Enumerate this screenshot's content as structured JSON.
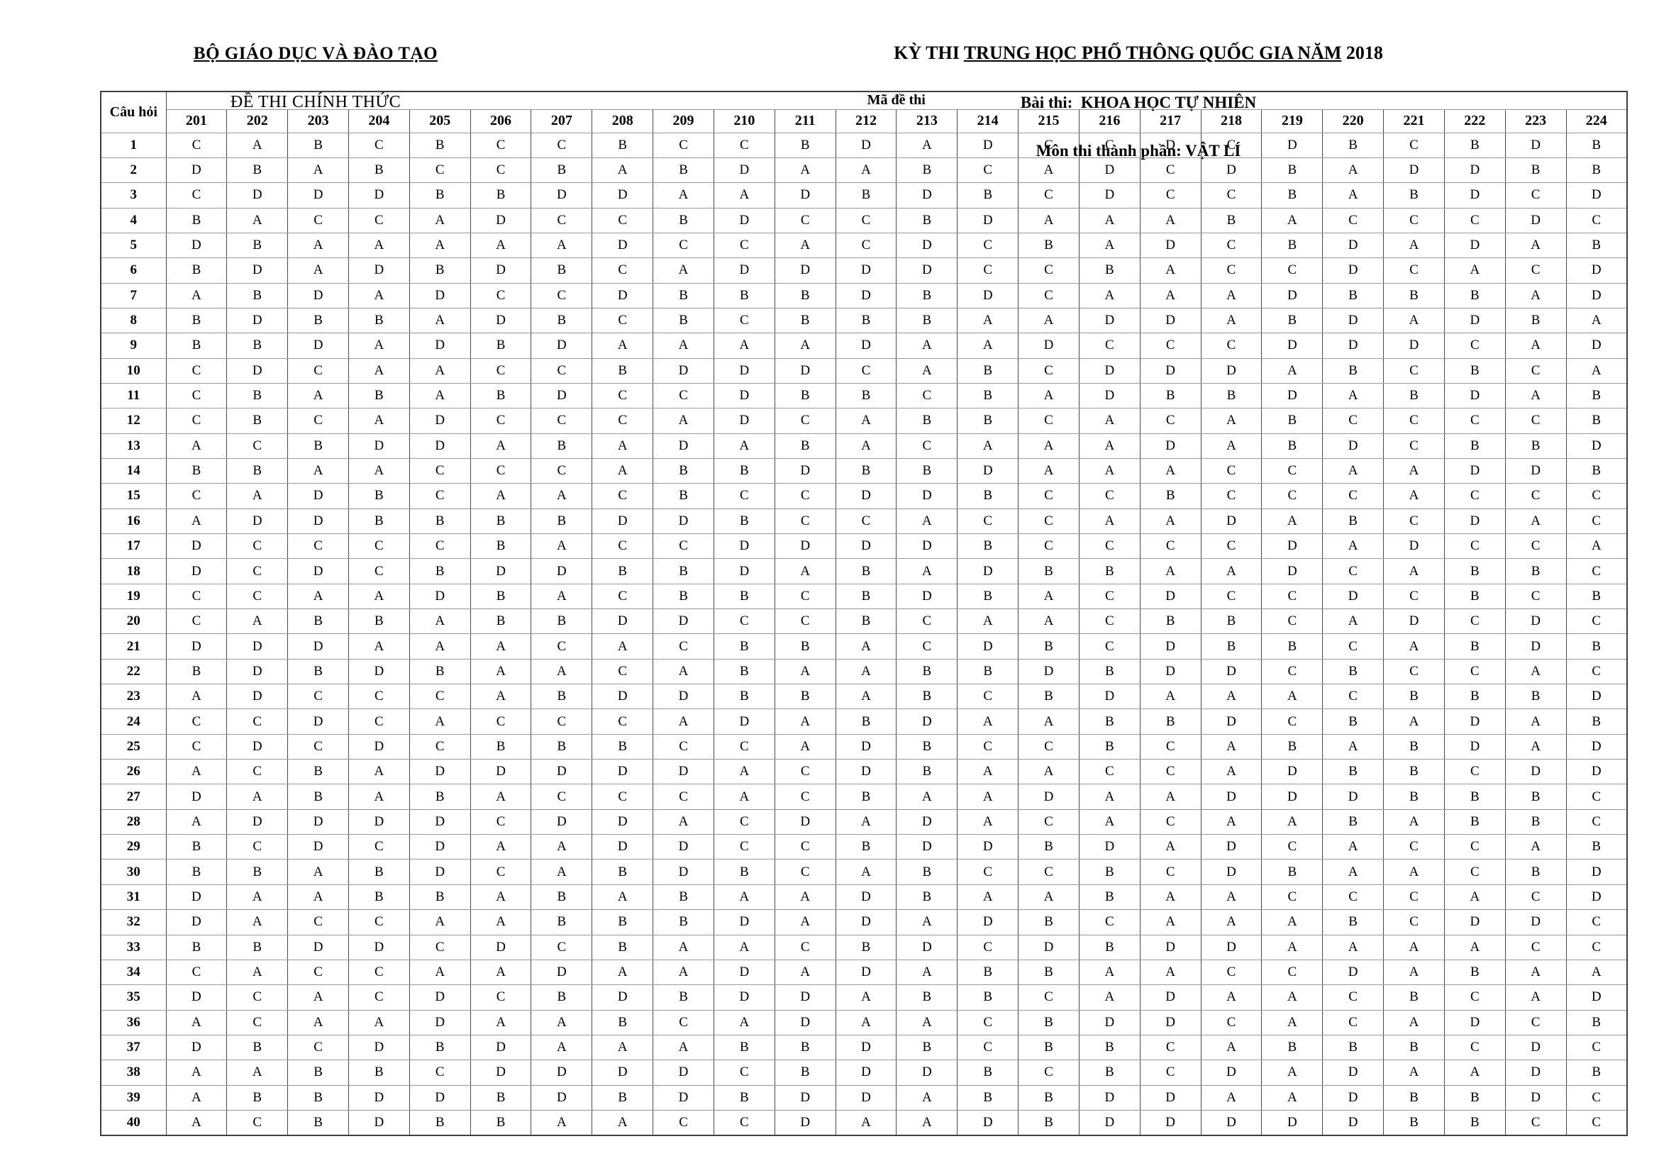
{
  "header_left": {
    "line1": "BỘ GIÁO DỤC VÀ ĐÀO TẠO",
    "line2": "ĐỀ THI CHÍNH THỨC"
  },
  "header_right": {
    "line1_prefix": "KỲ THI ",
    "line1_underline": "TRUNG HỌC PHỔ THÔNG QUỐC GIA NĂM",
    "line1_suffix": " 2018",
    "line2": "Bài thi:  KHOA HỌC TỰ NHIÊN",
    "line3": "Môn thi thành phần: VẬT LÍ"
  },
  "colors": {
    "text": "#000000",
    "background": "#ffffff",
    "grid_vertical": "#4a4a4a",
    "grid_horizontal": "#9a9a9a"
  },
  "table": {
    "corner_label": "Câu hỏi",
    "group_label": "Mã đề thi",
    "codes": [
      "201",
      "202",
      "203",
      "204",
      "205",
      "206",
      "207",
      "208",
      "209",
      "210",
      "211",
      "212",
      "213",
      "214",
      "215",
      "216",
      "217",
      "218",
      "219",
      "220",
      "221",
      "222",
      "223",
      "224"
    ],
    "rows": [
      {
        "q": "1",
        "a": [
          "C",
          "A",
          "B",
          "C",
          "B",
          "C",
          "C",
          "B",
          "C",
          "C",
          "B",
          "D",
          "A",
          "D",
          "C",
          "C",
          "D",
          "C",
          "D",
          "B",
          "C",
          "B",
          "D",
          "B"
        ]
      },
      {
        "q": "2",
        "a": [
          "D",
          "B",
          "A",
          "B",
          "C",
          "C",
          "B",
          "A",
          "B",
          "D",
          "A",
          "A",
          "B",
          "C",
          "A",
          "D",
          "C",
          "D",
          "B",
          "A",
          "D",
          "D",
          "B",
          "B"
        ]
      },
      {
        "q": "3",
        "a": [
          "C",
          "D",
          "D",
          "D",
          "B",
          "B",
          "D",
          "D",
          "A",
          "A",
          "D",
          "B",
          "D",
          "B",
          "C",
          "D",
          "C",
          "C",
          "B",
          "A",
          "B",
          "D",
          "C",
          "D"
        ]
      },
      {
        "q": "4",
        "a": [
          "B",
          "A",
          "C",
          "C",
          "A",
          "D",
          "C",
          "C",
          "B",
          "D",
          "C",
          "C",
          "B",
          "D",
          "A",
          "A",
          "A",
          "B",
          "A",
          "C",
          "C",
          "C",
          "D",
          "C"
        ]
      },
      {
        "q": "5",
        "a": [
          "D",
          "B",
          "A",
          "A",
          "A",
          "A",
          "A",
          "D",
          "C",
          "C",
          "A",
          "C",
          "D",
          "C",
          "B",
          "A",
          "D",
          "C",
          "B",
          "D",
          "A",
          "D",
          "A",
          "B"
        ]
      },
      {
        "q": "6",
        "a": [
          "B",
          "D",
          "A",
          "D",
          "B",
          "D",
          "B",
          "C",
          "A",
          "D",
          "D",
          "D",
          "D",
          "C",
          "C",
          "B",
          "A",
          "C",
          "C",
          "D",
          "C",
          "A",
          "C",
          "D"
        ]
      },
      {
        "q": "7",
        "a": [
          "A",
          "B",
          "D",
          "A",
          "D",
          "C",
          "C",
          "D",
          "B",
          "B",
          "B",
          "D",
          "B",
          "D",
          "C",
          "A",
          "A",
          "A",
          "D",
          "B",
          "B",
          "B",
          "A",
          "D"
        ]
      },
      {
        "q": "8",
        "a": [
          "B",
          "D",
          "B",
          "B",
          "A",
          "D",
          "B",
          "C",
          "B",
          "C",
          "B",
          "B",
          "B",
          "A",
          "A",
          "D",
          "D",
          "A",
          "B",
          "D",
          "A",
          "D",
          "B",
          "A"
        ]
      },
      {
        "q": "9",
        "a": [
          "B",
          "B",
          "D",
          "A",
          "D",
          "B",
          "D",
          "A",
          "A",
          "A",
          "A",
          "D",
          "A",
          "A",
          "D",
          "C",
          "C",
          "C",
          "D",
          "D",
          "D",
          "C",
          "A",
          "D"
        ]
      },
      {
        "q": "10",
        "a": [
          "C",
          "D",
          "C",
          "A",
          "A",
          "C",
          "C",
          "B",
          "D",
          "D",
          "D",
          "C",
          "A",
          "B",
          "C",
          "D",
          "D",
          "D",
          "A",
          "B",
          "C",
          "B",
          "C",
          "A"
        ]
      },
      {
        "q": "11",
        "a": [
          "C",
          "B",
          "A",
          "B",
          "A",
          "B",
          "D",
          "C",
          "C",
          "D",
          "B",
          "B",
          "C",
          "B",
          "A",
          "D",
          "B",
          "B",
          "D",
          "A",
          "B",
          "D",
          "A",
          "B"
        ]
      },
      {
        "q": "12",
        "a": [
          "C",
          "B",
          "C",
          "A",
          "D",
          "C",
          "C",
          "C",
          "A",
          "D",
          "C",
          "A",
          "B",
          "B",
          "C",
          "A",
          "C",
          "A",
          "B",
          "C",
          "C",
          "C",
          "C",
          "B"
        ]
      },
      {
        "q": "13",
        "a": [
          "A",
          "C",
          "B",
          "D",
          "D",
          "A",
          "B",
          "A",
          "D",
          "A",
          "B",
          "A",
          "C",
          "A",
          "A",
          "A",
          "D",
          "A",
          "B",
          "D",
          "C",
          "B",
          "B",
          "D"
        ]
      },
      {
        "q": "14",
        "a": [
          "B",
          "B",
          "A",
          "A",
          "C",
          "C",
          "C",
          "A",
          "B",
          "B",
          "D",
          "B",
          "B",
          "D",
          "A",
          "A",
          "A",
          "C",
          "C",
          "A",
          "A",
          "D",
          "D",
          "B"
        ]
      },
      {
        "q": "15",
        "a": [
          "C",
          "A",
          "D",
          "B",
          "C",
          "A",
          "A",
          "C",
          "B",
          "C",
          "C",
          "D",
          "D",
          "B",
          "C",
          "C",
          "B",
          "C",
          "C",
          "C",
          "A",
          "C",
          "C",
          "C"
        ]
      },
      {
        "q": "16",
        "a": [
          "A",
          "D",
          "D",
          "B",
          "B",
          "B",
          "B",
          "D",
          "D",
          "B",
          "C",
          "C",
          "A",
          "C",
          "C",
          "A",
          "A",
          "D",
          "A",
          "B",
          "C",
          "D",
          "A",
          "C"
        ]
      },
      {
        "q": "17",
        "a": [
          "D",
          "C",
          "C",
          "C",
          "C",
          "B",
          "A",
          "C",
          "C",
          "D",
          "D",
          "D",
          "D",
          "B",
          "C",
          "C",
          "C",
          "C",
          "D",
          "A",
          "D",
          "C",
          "C",
          "A"
        ]
      },
      {
        "q": "18",
        "a": [
          "D",
          "C",
          "D",
          "C",
          "B",
          "D",
          "D",
          "B",
          "B",
          "D",
          "A",
          "B",
          "A",
          "D",
          "B",
          "B",
          "A",
          "A",
          "D",
          "C",
          "A",
          "B",
          "B",
          "C"
        ]
      },
      {
        "q": "19",
        "a": [
          "C",
          "C",
          "A",
          "A",
          "D",
          "B",
          "A",
          "C",
          "B",
          "B",
          "C",
          "B",
          "D",
          "B",
          "A",
          "C",
          "D",
          "C",
          "C",
          "D",
          "C",
          "B",
          "C",
          "B"
        ]
      },
      {
        "q": "20",
        "a": [
          "C",
          "A",
          "B",
          "B",
          "A",
          "B",
          "B",
          "D",
          "D",
          "C",
          "C",
          "B",
          "C",
          "A",
          "A",
          "C",
          "B",
          "B",
          "C",
          "A",
          "D",
          "C",
          "D",
          "C"
        ]
      },
      {
        "q": "21",
        "a": [
          "D",
          "D",
          "D",
          "A",
          "A",
          "A",
          "C",
          "A",
          "C",
          "B",
          "B",
          "A",
          "C",
          "D",
          "B",
          "C",
          "D",
          "B",
          "B",
          "C",
          "A",
          "B",
          "D",
          "B"
        ]
      },
      {
        "q": "22",
        "a": [
          "B",
          "D",
          "B",
          "D",
          "B",
          "A",
          "A",
          "C",
          "A",
          "B",
          "A",
          "A",
          "B",
          "B",
          "D",
          "B",
          "D",
          "D",
          "C",
          "B",
          "C",
          "C",
          "A",
          "C"
        ]
      },
      {
        "q": "23",
        "a": [
          "A",
          "D",
          "C",
          "C",
          "C",
          "A",
          "B",
          "D",
          "D",
          "B",
          "B",
          "A",
          "B",
          "C",
          "B",
          "D",
          "A",
          "A",
          "A",
          "C",
          "B",
          "B",
          "B",
          "D"
        ]
      },
      {
        "q": "24",
        "a": [
          "C",
          "C",
          "D",
          "C",
          "A",
          "C",
          "C",
          "C",
          "A",
          "D",
          "A",
          "B",
          "D",
          "A",
          "A",
          "B",
          "B",
          "D",
          "C",
          "B",
          "A",
          "D",
          "A",
          "B"
        ]
      },
      {
        "q": "25",
        "a": [
          "C",
          "D",
          "C",
          "D",
          "C",
          "B",
          "B",
          "B",
          "C",
          "C",
          "A",
          "D",
          "B",
          "C",
          "C",
          "B",
          "C",
          "A",
          "B",
          "A",
          "B",
          "D",
          "A",
          "D"
        ]
      },
      {
        "q": "26",
        "a": [
          "A",
          "C",
          "B",
          "A",
          "D",
          "D",
          "D",
          "D",
          "D",
          "A",
          "C",
          "D",
          "B",
          "A",
          "A",
          "C",
          "C",
          "A",
          "D",
          "B",
          "B",
          "C",
          "D",
          "D"
        ]
      },
      {
        "q": "27",
        "a": [
          "D",
          "A",
          "B",
          "A",
          "B",
          "A",
          "C",
          "C",
          "C",
          "A",
          "C",
          "B",
          "A",
          "A",
          "D",
          "A",
          "A",
          "D",
          "D",
          "D",
          "B",
          "B",
          "B",
          "C"
        ]
      },
      {
        "q": "28",
        "a": [
          "A",
          "D",
          "D",
          "D",
          "D",
          "C",
          "D",
          "D",
          "A",
          "C",
          "D",
          "A",
          "D",
          "A",
          "C",
          "A",
          "C",
          "A",
          "A",
          "B",
          "A",
          "B",
          "B",
          "C"
        ]
      },
      {
        "q": "29",
        "a": [
          "B",
          "C",
          "D",
          "C",
          "D",
          "A",
          "A",
          "D",
          "D",
          "C",
          "C",
          "B",
          "D",
          "D",
          "B",
          "D",
          "A",
          "D",
          "C",
          "A",
          "C",
          "C",
          "A",
          "B"
        ]
      },
      {
        "q": "30",
        "a": [
          "B",
          "B",
          "A",
          "B",
          "D",
          "C",
          "A",
          "B",
          "D",
          "B",
          "C",
          "A",
          "B",
          "C",
          "C",
          "B",
          "C",
          "D",
          "B",
          "A",
          "A",
          "C",
          "B",
          "D"
        ]
      },
      {
        "q": "31",
        "a": [
          "D",
          "A",
          "A",
          "B",
          "B",
          "A",
          "B",
          "A",
          "B",
          "A",
          "A",
          "D",
          "B",
          "A",
          "A",
          "B",
          "A",
          "A",
          "C",
          "C",
          "C",
          "A",
          "C",
          "D"
        ]
      },
      {
        "q": "32",
        "a": [
          "D",
          "A",
          "C",
          "C",
          "A",
          "A",
          "B",
          "B",
          "B",
          "D",
          "A",
          "D",
          "A",
          "D",
          "B",
          "C",
          "A",
          "A",
          "A",
          "B",
          "C",
          "D",
          "D",
          "C"
        ]
      },
      {
        "q": "33",
        "a": [
          "B",
          "B",
          "D",
          "D",
          "C",
          "D",
          "C",
          "B",
          "A",
          "A",
          "C",
          "B",
          "D",
          "C",
          "D",
          "B",
          "D",
          "D",
          "A",
          "A",
          "A",
          "A",
          "C",
          "C"
        ]
      },
      {
        "q": "34",
        "a": [
          "C",
          "A",
          "C",
          "C",
          "A",
          "A",
          "D",
          "A",
          "A",
          "D",
          "A",
          "D",
          "A",
          "B",
          "B",
          "A",
          "A",
          "C",
          "C",
          "D",
          "A",
          "B",
          "A",
          "A"
        ]
      },
      {
        "q": "35",
        "a": [
          "D",
          "C",
          "A",
          "C",
          "D",
          "C",
          "B",
          "D",
          "B",
          "D",
          "D",
          "A",
          "B",
          "B",
          "C",
          "A",
          "D",
          "A",
          "A",
          "C",
          "B",
          "C",
          "A",
          "D"
        ]
      },
      {
        "q": "36",
        "a": [
          "A",
          "C",
          "A",
          "A",
          "D",
          "A",
          "A",
          "B",
          "C",
          "A",
          "D",
          "A",
          "A",
          "C",
          "B",
          "D",
          "D",
          "C",
          "A",
          "C",
          "A",
          "D",
          "C",
          "B"
        ]
      },
      {
        "q": "37",
        "a": [
          "D",
          "B",
          "C",
          "D",
          "B",
          "D",
          "A",
          "A",
          "A",
          "B",
          "B",
          "D",
          "B",
          "C",
          "B",
          "B",
          "C",
          "A",
          "B",
          "B",
          "B",
          "C",
          "D",
          "C"
        ]
      },
      {
        "q": "38",
        "a": [
          "A",
          "A",
          "B",
          "B",
          "C",
          "D",
          "D",
          "D",
          "D",
          "C",
          "B",
          "D",
          "D",
          "B",
          "C",
          "B",
          "C",
          "D",
          "A",
          "D",
          "A",
          "A",
          "D",
          "B"
        ]
      },
      {
        "q": "39",
        "a": [
          "A",
          "B",
          "B",
          "D",
          "D",
          "B",
          "D",
          "B",
          "D",
          "B",
          "D",
          "D",
          "A",
          "B",
          "B",
          "D",
          "D",
          "A",
          "A",
          "D",
          "B",
          "B",
          "D",
          "C"
        ]
      },
      {
        "q": "40",
        "a": [
          "A",
          "C",
          "B",
          "D",
          "B",
          "B",
          "A",
          "A",
          "C",
          "C",
          "D",
          "A",
          "A",
          "D",
          "B",
          "D",
          "D",
          "D",
          "D",
          "D",
          "B",
          "B",
          "C",
          "C"
        ]
      }
    ]
  }
}
